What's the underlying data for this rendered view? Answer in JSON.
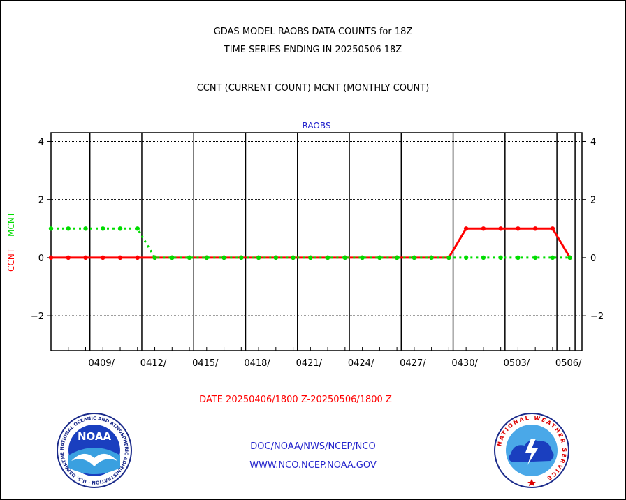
{
  "header": {
    "title_line1": "GDAS MODEL RAOBS DATA COUNTS for 18Z",
    "title_line2": "TIME SERIES ENDING IN 20250506 18Z",
    "subtitle": "CCNT (CURRENT COUNT) MCNT (MONTHLY COUNT)"
  },
  "footer": {
    "date_range": "DATE 20250406/1800 Z-20250506/1800 Z",
    "org_path": "DOC/NOAA/NWS/NCEP/NCO",
    "website": "WWW.NCO.NCEP.NOAA.GOV",
    "noaa_logo_text": "NOAA",
    "noaa_ring_text": "NATIONAL OCEANIC AND ATMOSPHERIC ADMINISTRATION · U.S. DEPARTMENT OF COMMERCE",
    "nws_ring_text": "NATIONAL WEATHER SERVICE"
  },
  "colors": {
    "ccnt": "#ff0000",
    "mcnt": "#00dd00",
    "axis": "#000000",
    "panel_title": "#2222cc"
  },
  "chart_data": {
    "type": "line",
    "panel_title": "RAOBS",
    "ylabel_left": "CCNT",
    "ylabel_right": "MCNT",
    "ylim": [
      -3.2,
      4.3
    ],
    "yticks": [
      4,
      2,
      0,
      -2
    ],
    "ytick_labels": [
      "4",
      "2",
      "0",
      "−2"
    ],
    "x_start_day": 0,
    "x_end_day": 30.7,
    "xticks_day": [
      3,
      6,
      9,
      12,
      15,
      18,
      21,
      24,
      27,
      30
    ],
    "xtick_labels": [
      "0409/",
      "0412/",
      "0415/",
      "0418/",
      "0421/",
      "0424/",
      "0427/",
      "0430/",
      "0503/",
      "0506/"
    ],
    "grid_y": [
      4,
      2,
      -2
    ],
    "grid_x_days": [
      2.25,
      5.25,
      8.25,
      11.25,
      14.25,
      17.25,
      20.25,
      23.25,
      26.25,
      29.25,
      30.3
    ],
    "series": [
      {
        "name": "CCNT",
        "x": [
          0,
          1,
          2,
          3,
          4,
          5,
          6,
          7,
          8,
          9,
          10,
          11,
          12,
          13,
          14,
          15,
          16,
          17,
          18,
          19,
          20,
          21,
          22,
          23,
          24,
          25,
          26,
          27,
          28,
          29,
          30
        ],
        "values": [
          0,
          0,
          0,
          0,
          0,
          0,
          0,
          0,
          0,
          0,
          0,
          0,
          0,
          0,
          0,
          0,
          0,
          0,
          0,
          0,
          0,
          0,
          0,
          0,
          1,
          1,
          1,
          1,
          1,
          1,
          0
        ]
      },
      {
        "name": "MCNT",
        "x": [
          0,
          1,
          2,
          3,
          4,
          5,
          6,
          7,
          8,
          9,
          10,
          11,
          12,
          13,
          14,
          15,
          16,
          17,
          18,
          19,
          20,
          21,
          22,
          23,
          24,
          25,
          26,
          27,
          28,
          29,
          30
        ],
        "values": [
          1,
          1,
          1,
          1,
          1,
          1,
          0,
          0,
          0,
          0,
          0,
          0,
          0,
          0,
          0,
          0,
          0,
          0,
          0,
          0,
          0,
          0,
          0,
          0,
          0,
          0,
          0,
          0,
          0,
          0,
          0
        ]
      }
    ]
  }
}
